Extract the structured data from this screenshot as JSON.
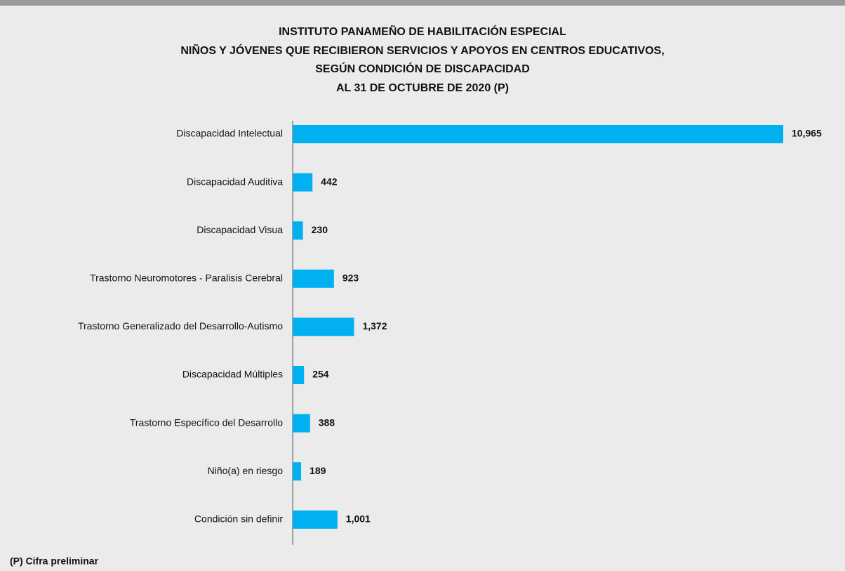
{
  "chart_data": {
    "type": "bar",
    "orientation": "horizontal",
    "title": [
      "INSTITUTO PANAMEÑO DE HABILITACIÓN ESPECIAL",
      "NIÑOS Y JÓVENES QUE RECIBIERON SERVICIOS Y APOYOS EN CENTROS EDUCATIVOS,",
      "SEGÚN CONDICIÓN DE DISCAPACIDAD",
      "AL 31 DE OCTUBRE DE 2020 (P)"
    ],
    "categories": [
      "Discapacidad Intelectual",
      "Discapacidad Auditiva",
      "Discapacidad Visua",
      "Trastorno Neuromotores - Paralisis Cerebral",
      "Trastorno Generalizado del Desarrollo-Autismo",
      "Discapacidad Múltiples",
      "Trastorno Específico del Desarrollo",
      "Niño(a) en riesgo",
      "Condición sin definir"
    ],
    "values": [
      10965,
      442,
      230,
      923,
      1372,
      254,
      388,
      189,
      1001
    ],
    "value_labels": [
      "10,965",
      "442",
      "230",
      "923",
      "1,372",
      "254",
      "388",
      "189",
      "1,001"
    ],
    "color": "#00b0f0",
    "note": "(P) Cifra preliminar"
  }
}
